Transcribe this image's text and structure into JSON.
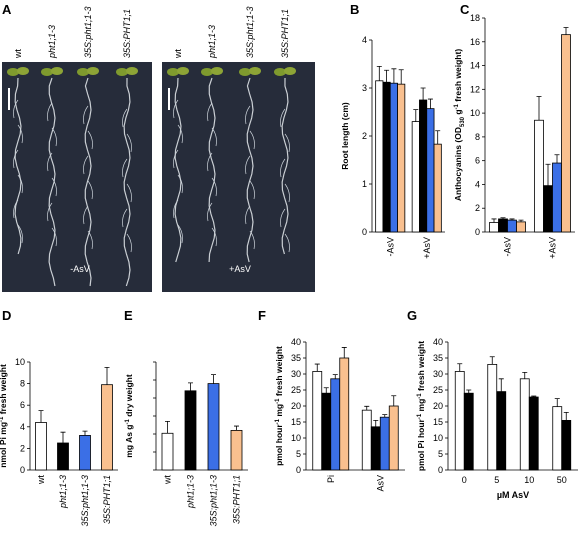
{
  "panel_a": {
    "letter": "A",
    "genotypes": [
      "wt",
      "pht1;1-3",
      "35S:pht1;1-3",
      "35S:PHT1;1"
    ],
    "conditions": [
      "-AsV",
      "+AsV"
    ]
  },
  "chart_data": [
    {
      "type": "grouped_bar",
      "letter": "B",
      "y_label": [
        "Root length (cm)"
      ],
      "y_label_styles": [
        "normal"
      ],
      "categories": [
        "-AsV",
        "+AsV"
      ],
      "category_rotate": true,
      "ylim": [
        0,
        4
      ],
      "yticks": [
        0,
        1,
        2,
        3,
        4
      ],
      "series": [
        {
          "color": "#ffffff",
          "values": [
            3.15,
            2.3
          ],
          "errors": [
            0.3,
            0.25
          ]
        },
        {
          "color": "#000000",
          "values": [
            3.12,
            2.75
          ],
          "errors": [
            0.25,
            0.25
          ]
        },
        {
          "color": "#3b6fe6",
          "values": [
            3.1,
            2.57
          ],
          "errors": [
            0.3,
            0.2
          ]
        },
        {
          "color": "#f9c08f",
          "values": [
            3.08,
            1.83
          ],
          "errors": [
            0.3,
            0.28
          ]
        }
      ]
    },
    {
      "type": "grouped_bar",
      "letter": "C",
      "y_label": [
        "Anthocyanins (OD",
        "530",
        " g",
        "-1",
        " fresh weight)"
      ],
      "y_label_styles": [
        "normal",
        "sub",
        "normal",
        "sup",
        "normal"
      ],
      "categories": [
        "-AsV",
        "+AsV"
      ],
      "category_rotate": true,
      "ylim": [
        0,
        18
      ],
      "yticks": [
        0,
        2,
        4,
        6,
        8,
        10,
        12,
        14,
        16,
        18
      ],
      "series": [
        {
          "color": "#ffffff",
          "values": [
            0.8,
            9.4
          ],
          "errors": [
            0.3,
            2
          ]
        },
        {
          "color": "#000000",
          "values": [
            1.1,
            3.9
          ],
          "errors": [
            0.1,
            1.8
          ]
        },
        {
          "color": "#3b6fe6",
          "values": [
            1.0,
            5.8
          ],
          "errors": [
            0.1,
            0.7
          ]
        },
        {
          "color": "#f9c08f",
          "values": [
            0.85,
            16.6
          ],
          "errors": [
            0.15,
            0.6
          ]
        }
      ]
    },
    {
      "type": "bar",
      "letter": "D",
      "y_label": [
        "nmol Pi mg",
        "-1",
        " fresh weight"
      ],
      "y_label_styles": [
        "normal",
        "sup",
        "normal"
      ],
      "categories": [
        "wt",
        "pht1;1-3",
        "35S:pht1;1-3",
        "35S:PHT1;1"
      ],
      "category_rotate": true,
      "category_italic": [
        false,
        true,
        true,
        true
      ],
      "ylim": [
        0,
        10
      ],
      "yticks": [
        0,
        2,
        4,
        6,
        8,
        10
      ],
      "values": [
        4.4,
        2.5,
        3.2,
        7.9
      ],
      "errors": [
        1.1,
        1.0,
        0.4,
        1.6
      ],
      "colors": [
        "#ffffff",
        "#000000",
        "#3b6fe6",
        "#f9c08f"
      ]
    },
    {
      "type": "bar",
      "letter": "E",
      "y_label": [
        "mg As g",
        "-1",
        " dry weight"
      ],
      "y_label_styles": [
        "normal",
        "sup",
        "normal"
      ],
      "categories": [
        "wt",
        "pht1;1-3",
        "35S:pht1;1-3",
        "35S:PHT1;1"
      ],
      "category_rotate": true,
      "category_italic": [
        false,
        true,
        true,
        true
      ],
      "ylim": [
        0,
        3
      ],
      "ytick_marks": [
        0,
        0.5,
        1,
        1.5,
        2,
        2.5,
        3
      ],
      "values": [
        1.02,
        2.2,
        2.4,
        1.1
      ],
      "errors": [
        0.33,
        0.22,
        0.25,
        0.12
      ],
      "colors": [
        "#ffffff",
        "#000000",
        "#3b6fe6",
        "#f9c08f"
      ]
    },
    {
      "type": "grouped_bar",
      "letter": "F",
      "y_label": [
        "pmol hour",
        "-1",
        " mg",
        "-1",
        " fresh weight"
      ],
      "y_label_styles": [
        "normal",
        "sup",
        "normal",
        "sup",
        "normal"
      ],
      "categories": [
        "Pi",
        "AsV"
      ],
      "category_rotate": true,
      "ylim": [
        0,
        40
      ],
      "yticks": [
        0,
        5,
        10,
        15,
        20,
        25,
        30,
        35,
        40
      ],
      "series": [
        {
          "color": "#ffffff",
          "values": [
            30.8,
            18.7
          ],
          "errors": [
            2.3,
            1.2
          ]
        },
        {
          "color": "#000000",
          "values": [
            24,
            13.5
          ],
          "errors": [
            1.7,
            2.0
          ]
        },
        {
          "color": "#3b6fe6",
          "values": [
            28.5,
            16.5
          ],
          "errors": [
            1.3,
            0.8
          ]
        },
        {
          "color": "#f9c08f",
          "values": [
            35,
            20
          ],
          "errors": [
            3.3,
            3.2
          ]
        }
      ]
    },
    {
      "type": "grouped_bar",
      "letter": "G",
      "y_label": [
        "pmol Pi hour",
        "-1",
        " mg",
        "-1",
        " fresh weight"
      ],
      "y_label_styles": [
        "normal",
        "sup",
        "normal",
        "sup",
        "normal"
      ],
      "categories": [
        "0",
        "5",
        "10",
        "50"
      ],
      "category_rotate": false,
      "x_label": "µM AsV",
      "ylim": [
        0,
        40
      ],
      "yticks": [
        0,
        5,
        10,
        15,
        20,
        25,
        30,
        35,
        40
      ],
      "series": [
        {
          "color": "#ffffff",
          "values": [
            30.8,
            33,
            28.5,
            19.8
          ],
          "errors": [
            2.4,
            2.4,
            2,
            2.5
          ]
        },
        {
          "color": "#000000",
          "values": [
            24,
            24.5,
            22.8,
            15.5
          ],
          "errors": [
            1,
            4,
            0.3,
            2.5
          ]
        }
      ]
    }
  ]
}
